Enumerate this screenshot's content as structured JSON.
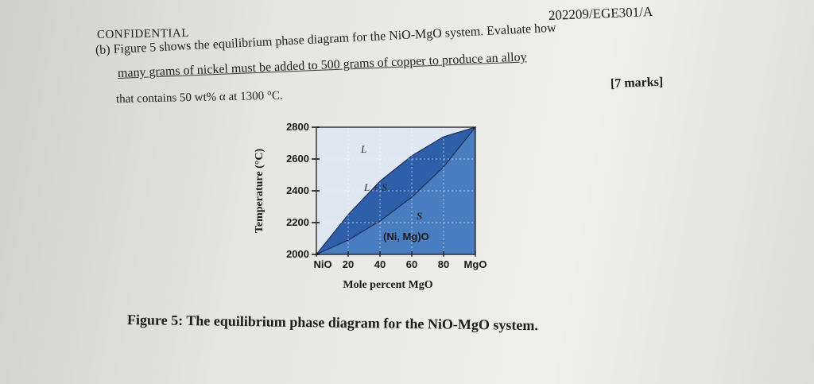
{
  "header": {
    "code": "202209/EGE301/A",
    "confidential": "CONFIDENTIAL"
  },
  "question": {
    "line1": "(b)  Figure 5 shows the equilibrium phase diagram for the NiO-MgO system. Evaluate how",
    "line2": "many grams of nickel must be added to 500 grams of copper to produce an alloy",
    "line3": "that contains 50 wt% α at 1300 °C.",
    "marks": "[7 marks]"
  },
  "chart_data": {
    "type": "area",
    "ylabel": "Temperature (°C)",
    "xlabel": "Mole percent MgO",
    "x_ticks": [
      "NiO",
      "20",
      "40",
      "60",
      "80",
      "MgO"
    ],
    "x_values": [
      0,
      20,
      40,
      60,
      80,
      100
    ],
    "y_ticks": [
      "2000",
      "2200",
      "2400",
      "2600",
      "2800"
    ],
    "ylim": [
      2000,
      2800
    ],
    "xlim": [
      0,
      100
    ],
    "grid": true,
    "regions": {
      "liquid": "L",
      "two_phase": "L + S",
      "solid": "S",
      "solid_phase": "(Ni, Mg)O"
    },
    "liquidus": {
      "x": [
        0,
        20,
        40,
        60,
        80,
        100
      ],
      "y": [
        2000,
        2250,
        2460,
        2620,
        2740,
        2800
      ]
    },
    "solidus": {
      "x": [
        0,
        20,
        40,
        60,
        80,
        100
      ],
      "y": [
        2000,
        2090,
        2210,
        2360,
        2550,
        2800
      ]
    },
    "colors": {
      "solid_fill": "#4a7cc0",
      "two_phase_fill": "#2f5fa8",
      "liquid_fill": "#dfe7f2"
    }
  },
  "caption": "Figure 5: The equilibrium phase diagram for the NiO-MgO system."
}
